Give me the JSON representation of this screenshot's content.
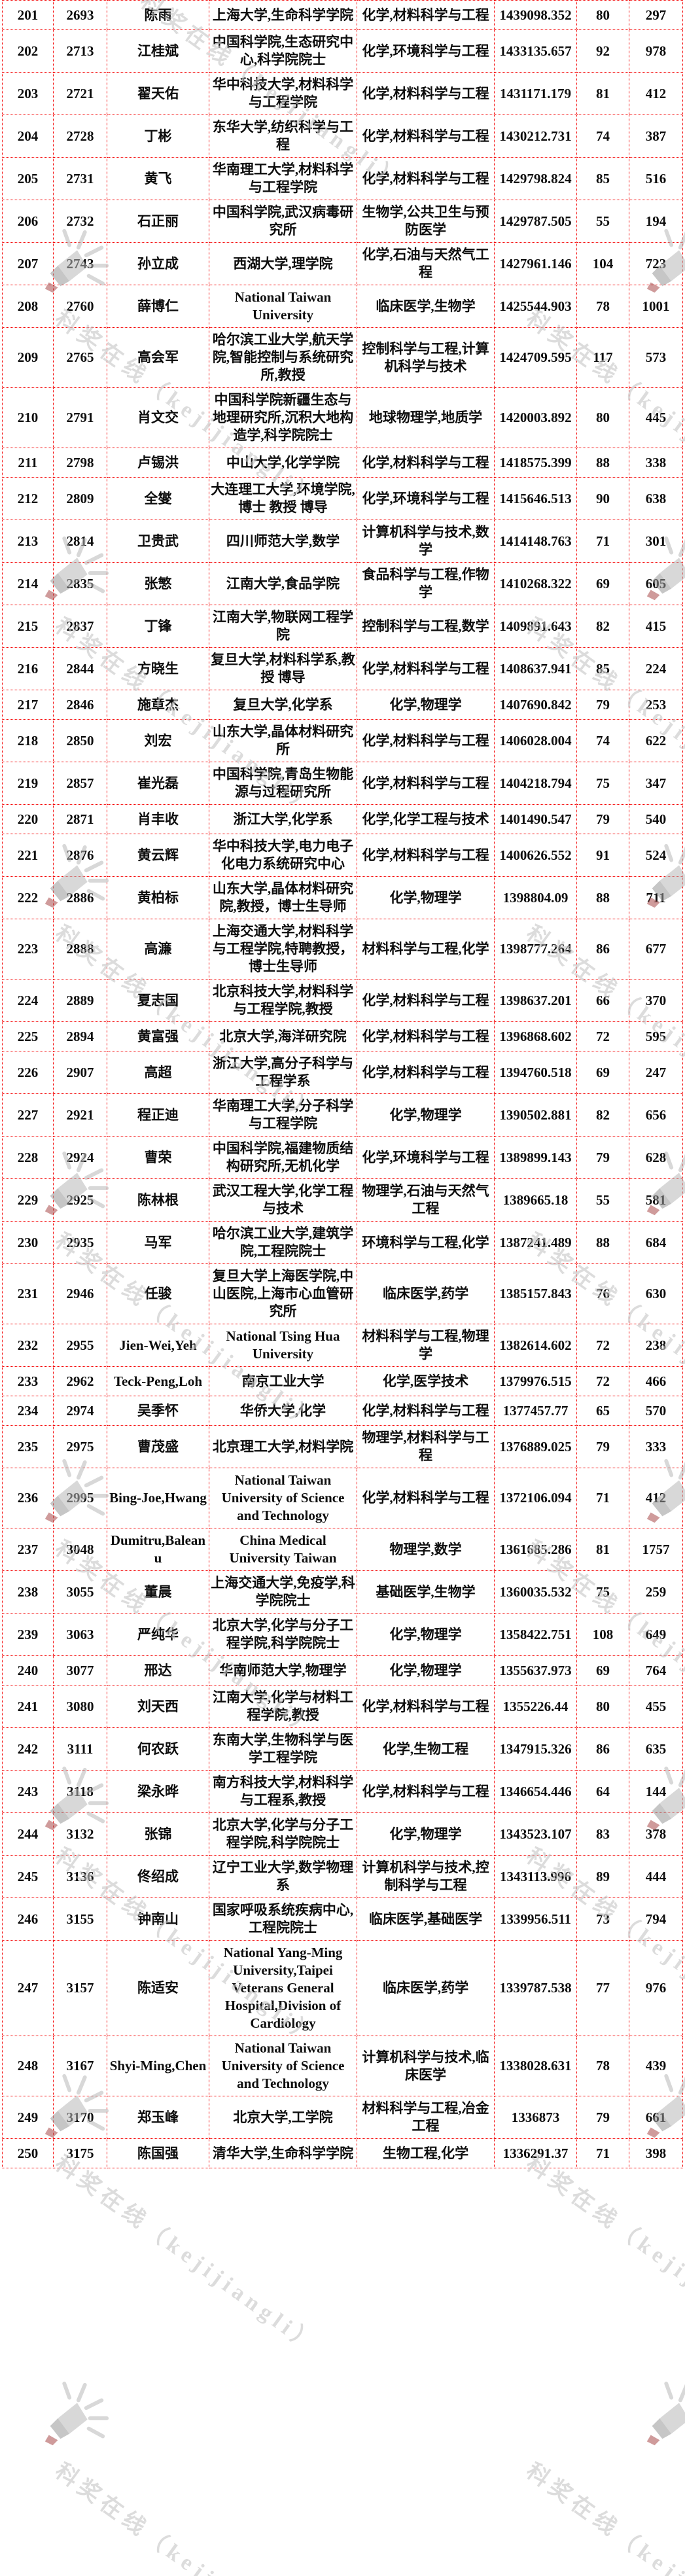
{
  "watermark": {
    "text": "科奖在线（kejijiangli）"
  },
  "table": {
    "rows": [
      [
        "201",
        "2693",
        "陈雨",
        "上海大学,生命科学学院",
        "化学,材料科学与工程",
        "1439098.352",
        "80",
        "297"
      ],
      [
        "202",
        "2713",
        "江桂斌",
        "中国科学院,生态研究中心,科学院院士",
        "化学,环境科学与工程",
        "1433135.657",
        "92",
        "978"
      ],
      [
        "203",
        "2721",
        "翟天佑",
        "华中科技大学,材料科学与工程学院",
        "化学,材料科学与工程",
        "1431171.179",
        "81",
        "412"
      ],
      [
        "204",
        "2728",
        "丁彬",
        "东华大学,纺织科学与工程",
        "化学,材料科学与工程",
        "1430212.731",
        "74",
        "387"
      ],
      [
        "205",
        "2731",
        "黄飞",
        "华南理工大学,材料科学与工程学院",
        "化学,材料科学与工程",
        "1429798.824",
        "85",
        "516"
      ],
      [
        "206",
        "2732",
        "石正丽",
        "中国科学院,武汉病毒研究所",
        "生物学,公共卫生与预防医学",
        "1429787.505",
        "55",
        "194"
      ],
      [
        "207",
        "2743",
        "孙立成",
        "西湖大学,理学院",
        "化学,石油与天然气工程",
        "1427961.146",
        "104",
        "723"
      ],
      [
        "208",
        "2760",
        "薛博仁",
        "National Taiwan University",
        "临床医学,生物学",
        "1425544.903",
        "78",
        "1001"
      ],
      [
        "209",
        "2765",
        "高会军",
        "哈尔滨工业大学,航天学院,智能控制与系统研究所,教授",
        "控制科学与工程,计算机科学与技术",
        "1424709.595",
        "117",
        "573"
      ],
      [
        "210",
        "2791",
        "肖文交",
        "中国科学院新疆生态与地理研究所,沉积大地构造学,科学院院士",
        "地球物理学,地质学",
        "1420003.892",
        "80",
        "445"
      ],
      [
        "211",
        "2798",
        "卢锡洪",
        "中山大学,化学学院",
        "化学,材料科学与工程",
        "1418575.399",
        "88",
        "338"
      ],
      [
        "212",
        "2809",
        "全燮",
        "大连理工大学,环境学院,博士 教授 博导",
        "化学,环境科学与工程",
        "1415646.513",
        "90",
        "638"
      ],
      [
        "213",
        "2814",
        "卫贵武",
        "四川师范大学,数学",
        "计算机科学与技术,数学",
        "1414148.763",
        "71",
        "301"
      ],
      [
        "214",
        "2835",
        "张慜",
        "江南大学,食品学院",
        "食品科学与工程,作物学",
        "1410268.322",
        "69",
        "605"
      ],
      [
        "215",
        "2837",
        "丁锋",
        "江南大学,物联网工程学院",
        "控制科学与工程,数学",
        "1409891.643",
        "82",
        "415"
      ],
      [
        "216",
        "2844",
        "方晓生",
        "复旦大学,材料科学系,教授 博导",
        "化学,材料科学与工程",
        "1408637.941",
        "85",
        "224"
      ],
      [
        "217",
        "2846",
        "施章杰",
        "复旦大学,化学系",
        "化学,物理学",
        "1407690.842",
        "79",
        "253"
      ],
      [
        "218",
        "2850",
        "刘宏",
        "山东大学,晶体材料研究所",
        "化学,材料科学与工程",
        "1406028.004",
        "74",
        "622"
      ],
      [
        "219",
        "2857",
        "崔光磊",
        "中国科学院,青岛生物能源与过程研究所",
        "化学,材料科学与工程",
        "1404218.794",
        "75",
        "347"
      ],
      [
        "220",
        "2871",
        "肖丰收",
        "浙江大学,化学系",
        "化学,化学工程与技术",
        "1401490.547",
        "79",
        "540"
      ],
      [
        "221",
        "2876",
        "黄云辉",
        "华中科技大学,电力电子化电力系统研究中心",
        "化学,材料科学与工程",
        "1400626.552",
        "91",
        "524"
      ],
      [
        "222",
        "2886",
        "黄柏标",
        "山东大学,晶体材料研究院,教授，博士生导师",
        "化学,物理学",
        "1398804.09",
        "88",
        "711"
      ],
      [
        "223",
        "2888",
        "高濂",
        "上海交通大学,材料科学与工程学院,特聘教授，博士生导师",
        "材料科学与工程,化学",
        "1398777.264",
        "86",
        "677"
      ],
      [
        "224",
        "2889",
        "夏志国",
        "北京科技大学,材料科学与工程学院,教授",
        "化学,材料科学与工程",
        "1398637.201",
        "66",
        "370"
      ],
      [
        "225",
        "2894",
        "黄富强",
        "北京大学,海洋研究院",
        "化学,材料科学与工程",
        "1396868.602",
        "72",
        "595"
      ],
      [
        "226",
        "2907",
        "高超",
        "浙江大学,高分子科学与工程学系",
        "化学,材料科学与工程",
        "1394760.518",
        "69",
        "247"
      ],
      [
        "227",
        "2921",
        "程正迪",
        "华南理工大学,分子科学与工程学院",
        "化学,物理学",
        "1390502.881",
        "82",
        "656"
      ],
      [
        "228",
        "2924",
        "曹荣",
        "中国科学院,福建物质结构研究所,无机化学",
        "化学,环境科学与工程",
        "1389899.143",
        "79",
        "628"
      ],
      [
        "229",
        "2925",
        "陈林根",
        "武汉工程大学,化学工程与技术",
        "物理学,石油与天然气工程",
        "1389665.18",
        "55",
        "581"
      ],
      [
        "230",
        "2935",
        "马军",
        "哈尔滨工业大学,建筑学院,工程院院士",
        "环境科学与工程,化学",
        "1387241.489",
        "88",
        "684"
      ],
      [
        "231",
        "2946",
        "任骏",
        "复旦大学上海医学院,中山医院,上海市心血管研究所",
        "临床医学,药学",
        "1385157.843",
        "76",
        "630"
      ],
      [
        "232",
        "2955",
        "Jien-Wei,Yeh",
        "National Tsing Hua University",
        "材料科学与工程,物理学",
        "1382614.602",
        "72",
        "238"
      ],
      [
        "233",
        "2962",
        "Teck-Peng,Loh",
        "南京工业大学",
        "化学,医学技术",
        "1379976.515",
        "72",
        "466"
      ],
      [
        "234",
        "2974",
        "吴季怀",
        "华侨大学,化学",
        "化学,材料科学与工程",
        "1377457.77",
        "65",
        "570"
      ],
      [
        "235",
        "2975",
        "曹茂盛",
        "北京理工大学,材料学院",
        "物理学,材料科学与工程",
        "1376889.025",
        "79",
        "333"
      ],
      [
        "236",
        "2995",
        "Bing-Joe,Hwang",
        "National Taiwan University of Science and Technology",
        "化学,材料科学与工程",
        "1372106.094",
        "71",
        "412"
      ],
      [
        "237",
        "3048",
        "Dumitru,Baleanu",
        "China Medical University Taiwan",
        "物理学,数学",
        "1361685.286",
        "81",
        "1757"
      ],
      [
        "238",
        "3055",
        "董晨",
        "上海交通大学,免疫学,科学院院士",
        "基础医学,生物学",
        "1360035.532",
        "75",
        "259"
      ],
      [
        "239",
        "3063",
        "严纯华",
        "北京大学,化学与分子工程学院,科学院院士",
        "化学,物理学",
        "1358422.751",
        "108",
        "649"
      ],
      [
        "240",
        "3077",
        "邢达",
        "华南师范大学,物理学",
        "化学,物理学",
        "1355637.973",
        "69",
        "764"
      ],
      [
        "241",
        "3080",
        "刘天西",
        "江南大学,化学与材料工程学院,教授",
        "化学,材料科学与工程",
        "1355226.44",
        "80",
        "455"
      ],
      [
        "242",
        "3111",
        "何农跃",
        "东南大学,生物科学与医学工程学院",
        "化学,生物工程",
        "1347915.326",
        "86",
        "635"
      ],
      [
        "243",
        "3118",
        "梁永晔",
        "南方科技大学,材料科学与工程系,教授",
        "化学,材料科学与工程",
        "1346654.446",
        "64",
        "144"
      ],
      [
        "244",
        "3132",
        "张锦",
        "北京大学,化学与分子工程学院,科学院院士",
        "化学,物理学",
        "1343523.107",
        "83",
        "378"
      ],
      [
        "245",
        "3136",
        "佟绍成",
        "辽宁工业大学,数学物理系",
        "计算机科学与技术,控制科学与工程",
        "1343113.996",
        "89",
        "444"
      ],
      [
        "246",
        "3155",
        "钟南山",
        "国家呼吸系统疾病中心,工程院院士",
        "临床医学,基础医学",
        "1339956.511",
        "73",
        "794"
      ],
      [
        "247",
        "3157",
        "陈适安",
        "National Yang-Ming University,Taipei Veterans General Hospital,Division of Cardiology",
        "临床医学,药学",
        "1339787.538",
        "77",
        "976"
      ],
      [
        "248",
        "3167",
        "Shyi-Ming,Chen",
        "National Taiwan University of Science and Technology",
        "计算机科学与技术,临床医学",
        "1338028.631",
        "78",
        "439"
      ],
      [
        "249",
        "3170",
        "郑玉峰",
        "北京大学,工学院",
        "材料科学与工程,冶金工程",
        "1336873",
        "79",
        "661"
      ],
      [
        "250",
        "3175",
        "陈国强",
        "清华大学,生命科学学院",
        "生物工程,化学",
        "1336291.37",
        "71",
        "398"
      ]
    ]
  }
}
